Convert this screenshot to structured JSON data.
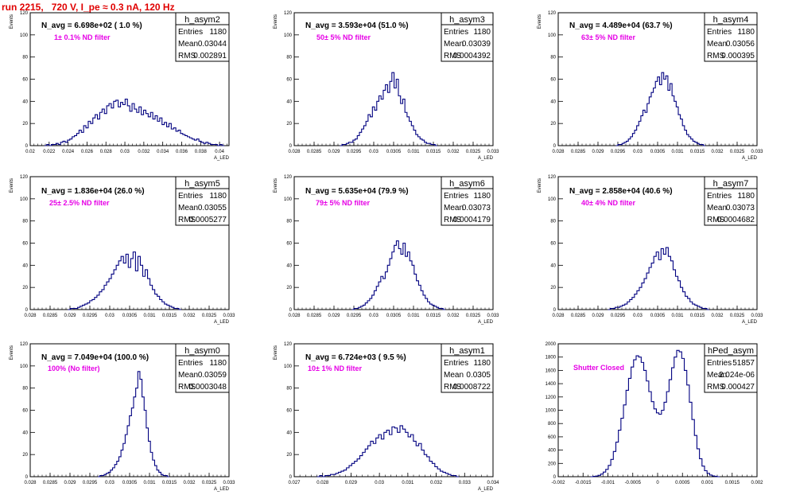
{
  "header": {
    "title": "run 2215,   720 V, I_pe ≈ 0.3 nA, 120 Hz"
  },
  "colors": {
    "histogram": "#000080",
    "title": "#e00000",
    "annotation": "#e600e6"
  },
  "chart_data": [
    {
      "type": "bar",
      "name": "h_asym2",
      "ylabel": "Events",
      "xlabel": "A_LED",
      "xlim": [
        0.02,
        0.041
      ],
      "ylim": [
        0,
        120
      ],
      "xticks": [
        "0.02",
        "0.022",
        "0.024",
        "0.026",
        "0.028",
        "0.03",
        "0.032",
        "0.034",
        "0.036",
        "0.038",
        "0.04"
      ],
      "yticks": [
        "0",
        "20",
        "40",
        "60",
        "80",
        "100",
        "120"
      ],
      "navg": "N_avg = 6.698e+02 ( 1.0 %)",
      "note": "1± 0.1% ND filter",
      "stats": {
        "entries": "1180",
        "mean": "0.03044",
        "rms": "0.002891"
      },
      "values": [
        0,
        1,
        0,
        1,
        1,
        2,
        1,
        3,
        4,
        3,
        5,
        6,
        8,
        9,
        11,
        14,
        12,
        18,
        16,
        22,
        20,
        25,
        28,
        24,
        30,
        33,
        29,
        36,
        38,
        34,
        40,
        41,
        35,
        39,
        37,
        42,
        36,
        31,
        38,
        33,
        30,
        35,
        28,
        32,
        29,
        26,
        30,
        24,
        27,
        22,
        25,
        19,
        21,
        17,
        20,
        15,
        16,
        13,
        14,
        11,
        10,
        9,
        8,
        7,
        6,
        5,
        6,
        4,
        3,
        2,
        3,
        2,
        1,
        1,
        1,
        0,
        1,
        0
      ],
      "hist_range": [
        0.0215,
        0.0405
      ]
    },
    {
      "type": "bar",
      "name": "h_asym3",
      "ylabel": "Events",
      "xlabel": "A_LED",
      "xlim": [
        0.028,
        0.033
      ],
      "ylim": [
        0,
        120
      ],
      "xticks": [
        "0.028",
        "0.0285",
        "0.029",
        "0.0295",
        "0.03",
        "0.0305",
        "0.031",
        "0.0315",
        "0.032",
        "0.0325",
        "0.033"
      ],
      "yticks": [
        "0",
        "20",
        "40",
        "60",
        "80",
        "100",
        "120"
      ],
      "navg": "N_avg = 3.593e+04 (51.0 %)",
      "note": "50± 5% ND filter",
      "stats": {
        "entries": "1180",
        "mean": "0.03039",
        "rms": "0.0004392"
      },
      "values": [
        0,
        1,
        1,
        2,
        3,
        3,
        5,
        6,
        9,
        12,
        15,
        18,
        22,
        28,
        26,
        35,
        32,
        40,
        45,
        42,
        50,
        55,
        48,
        58,
        66,
        52,
        60,
        45,
        38,
        42,
        30,
        26,
        22,
        18,
        14,
        10,
        8,
        6,
        5,
        3,
        2,
        2,
        1,
        1,
        0
      ],
      "hist_range": [
        0.02915,
        0.0316
      ]
    },
    {
      "type": "bar",
      "name": "h_asym4",
      "ylabel": "Events",
      "xlabel": "A_LED",
      "xlim": [
        0.028,
        0.033
      ],
      "ylim": [
        0,
        120
      ],
      "xticks": [
        "0.028",
        "0.0285",
        "0.029",
        "0.0295",
        "0.03",
        "0.0305",
        "0.031",
        "0.0315",
        "0.032",
        "0.0325",
        "0.033"
      ],
      "yticks": [
        "0",
        "20",
        "40",
        "60",
        "80",
        "100",
        "120"
      ],
      "navg": "N_avg = 4.489e+04 (63.7 %)",
      "note": "63± 5% ND filter",
      "stats": {
        "entries": "1180",
        "mean": "0.03056",
        "rms": "0.000395"
      },
      "values": [
        0,
        1,
        1,
        2,
        3,
        4,
        6,
        8,
        11,
        14,
        18,
        22,
        27,
        32,
        30,
        38,
        44,
        48,
        52,
        58,
        62,
        55,
        66,
        60,
        63,
        50,
        56,
        45,
        40,
        35,
        28,
        24,
        18,
        14,
        10,
        8,
        6,
        4,
        3,
        2,
        1,
        1,
        0
      ],
      "hist_range": [
        0.02945,
        0.0317
      ]
    },
    {
      "type": "bar",
      "name": "h_asym5",
      "ylabel": "Events",
      "xlabel": "A_LED",
      "xlim": [
        0.028,
        0.033
      ],
      "ylim": [
        0,
        120
      ],
      "xticks": [
        "0.028",
        "0.0285",
        "0.029",
        "0.0295",
        "0.03",
        "0.0305",
        "0.031",
        "0.0315",
        "0.032",
        "0.0325",
        "0.033"
      ],
      "yticks": [
        "0",
        "20",
        "40",
        "60",
        "80",
        "100",
        "120"
      ],
      "navg": "N_avg = 1.836e+04 (26.0 %)",
      "note": "25± 2.5% ND filter",
      "stats": {
        "entries": "1180",
        "mean": "0.03055",
        "rms": "0.0005277"
      },
      "values": [
        0,
        1,
        1,
        1,
        2,
        3,
        4,
        5,
        6,
        8,
        9,
        11,
        13,
        16,
        18,
        22,
        25,
        28,
        32,
        36,
        40,
        44,
        48,
        42,
        50,
        38,
        46,
        52,
        35,
        48,
        40,
        30,
        36,
        28,
        22,
        18,
        14,
        12,
        9,
        7,
        5,
        4,
        3,
        2,
        1,
        1,
        0
      ],
      "hist_range": [
        0.02895,
        0.0318
      ]
    },
    {
      "type": "bar",
      "name": "h_asym6",
      "ylabel": "Events",
      "xlabel": "A_LED",
      "xlim": [
        0.028,
        0.033
      ],
      "ylim": [
        0,
        120
      ],
      "xticks": [
        "0.028",
        "0.0285",
        "0.029",
        "0.0295",
        "0.03",
        "0.0305",
        "0.031",
        "0.0315",
        "0.032",
        "0.0325",
        "0.033"
      ],
      "yticks": [
        "0",
        "20",
        "40",
        "60",
        "80",
        "100",
        "120"
      ],
      "navg": "N_avg = 5.635e+04 (79.9 %)",
      "note": "79± 5% ND filter",
      "stats": {
        "entries": "1180",
        "mean": "0.03073",
        "rms": "0.0004179"
      },
      "values": [
        0,
        1,
        1,
        2,
        3,
        4,
        6,
        8,
        10,
        13,
        17,
        21,
        25,
        30,
        28,
        34,
        40,
        46,
        52,
        58,
        62,
        55,
        50,
        60,
        48,
        52,
        44,
        40,
        32,
        26,
        22,
        17,
        13,
        10,
        7,
        5,
        4,
        3,
        2,
        1,
        1,
        0
      ],
      "hist_range": [
        0.02945,
        0.0318
      ]
    },
    {
      "type": "bar",
      "name": "h_asym7",
      "ylabel": "Events",
      "xlabel": "A_LED",
      "xlim": [
        0.028,
        0.033
      ],
      "ylim": [
        0,
        120
      ],
      "xticks": [
        "0.028",
        "0.0285",
        "0.029",
        "0.0295",
        "0.03",
        "0.0305",
        "0.031",
        "0.0315",
        "0.032",
        "0.0325",
        "0.033"
      ],
      "yticks": [
        "0",
        "20",
        "40",
        "60",
        "80",
        "100",
        "120"
      ],
      "navg": "N_avg = 2.858e+04 (40.6 %)",
      "note": "40± 4% ND filter",
      "stats": {
        "entries": "1180",
        "mean": "0.03073",
        "rms": "0.0004682"
      },
      "values": [
        0,
        1,
        1,
        2,
        2,
        3,
        4,
        5,
        7,
        9,
        11,
        14,
        17,
        20,
        24,
        28,
        33,
        38,
        42,
        48,
        52,
        45,
        55,
        50,
        56,
        48,
        44,
        36,
        30,
        26,
        20,
        16,
        12,
        10,
        7,
        5,
        4,
        3,
        2,
        1,
        1,
        0
      ],
      "hist_range": [
        0.02925,
        0.0318
      ]
    },
    {
      "type": "bar",
      "name": "h_asym0",
      "ylabel": "Events",
      "xlabel": "A_LED",
      "xlim": [
        0.028,
        0.033
      ],
      "ylim": [
        0,
        120
      ],
      "xticks": [
        "0.028",
        "0.0285",
        "0.029",
        "0.0295",
        "0.03",
        "0.0305",
        "0.031",
        "0.0315",
        "0.032",
        "0.0325",
        "0.033"
      ],
      "yticks": [
        "0",
        "20",
        "40",
        "60",
        "80",
        "100",
        "120"
      ],
      "navg": "N_avg = 7.049e+04 (100.0 %)",
      "note": "100% (No filter)",
      "stats": {
        "entries": "1180",
        "mean": "0.03059",
        "rms": "0.0003048"
      },
      "values": [
        0,
        1,
        1,
        2,
        3,
        4,
        6,
        8,
        11,
        14,
        18,
        24,
        30,
        38,
        46,
        55,
        62,
        72,
        80,
        95,
        88,
        72,
        60,
        44,
        32,
        22,
        15,
        10,
        6,
        4,
        2,
        1,
        1,
        0
      ],
      "hist_range": [
        0.0297,
        0.0315
      ]
    },
    {
      "type": "bar",
      "name": "h_asym1",
      "ylabel": "Events",
      "xlabel": "A_LED",
      "xlim": [
        0.027,
        0.034
      ],
      "ylim": [
        0,
        120
      ],
      "xticks": [
        "0.027",
        "0.028",
        "0.029",
        "0.03",
        "0.031",
        "0.032",
        "0.033",
        "0.034"
      ],
      "yticks": [
        "0",
        "20",
        "40",
        "60",
        "80",
        "100",
        "120"
      ],
      "navg": "N_avg = 6.724e+03 ( 9.5 %)",
      "note": "10± 1% ND filter",
      "stats": {
        "entries": "1180",
        "mean": "0.0305",
        "rms": "0.0008722"
      },
      "values": [
        0,
        1,
        0,
        1,
        1,
        2,
        2,
        3,
        4,
        5,
        6,
        8,
        10,
        12,
        14,
        16,
        19,
        22,
        25,
        28,
        32,
        30,
        35,
        38,
        34,
        40,
        42,
        38,
        45,
        44,
        40,
        46,
        43,
        40,
        36,
        38,
        32,
        28,
        30,
        24,
        20,
        18,
        14,
        12,
        9,
        7,
        5,
        4,
        3,
        2,
        1,
        1,
        0
      ],
      "hist_range": [
        0.0278,
        0.0328
      ]
    },
    {
      "type": "bar",
      "name": "hPed_asym",
      "ylabel": "",
      "xlabel": "",
      "xlim": [
        -0.002,
        0.002
      ],
      "ylim": [
        0,
        2000
      ],
      "xticks": [
        "-0.002",
        "-0.0015",
        "-0.001",
        "-0.0005",
        "0",
        "0.0005",
        "0.001",
        "0.0015",
        "0.002"
      ],
      "yticks": [
        "0",
        "200",
        "400",
        "600",
        "800",
        "1000",
        "1200",
        "1400",
        "1600",
        "1800",
        "2000"
      ],
      "navg": "",
      "note": "Shutter Closed",
      "stats": {
        "entries": "51857",
        "mean": "2.024e-06",
        "rms": "0.000427"
      },
      "values": [
        0,
        5,
        10,
        20,
        40,
        70,
        110,
        170,
        260,
        380,
        520,
        700,
        880,
        1080,
        1300,
        1480,
        1650,
        1760,
        1820,
        1800,
        1720,
        1600,
        1440,
        1280,
        1130,
        1020,
        960,
        940,
        1000,
        1120,
        1280,
        1460,
        1640,
        1800,
        1900,
        1880,
        1780,
        1600,
        1380,
        1120,
        860,
        620,
        420,
        270,
        160,
        90,
        50,
        25,
        12,
        5,
        0
      ],
      "hist_range": [
        -0.00135,
        0.00125
      ]
    }
  ]
}
